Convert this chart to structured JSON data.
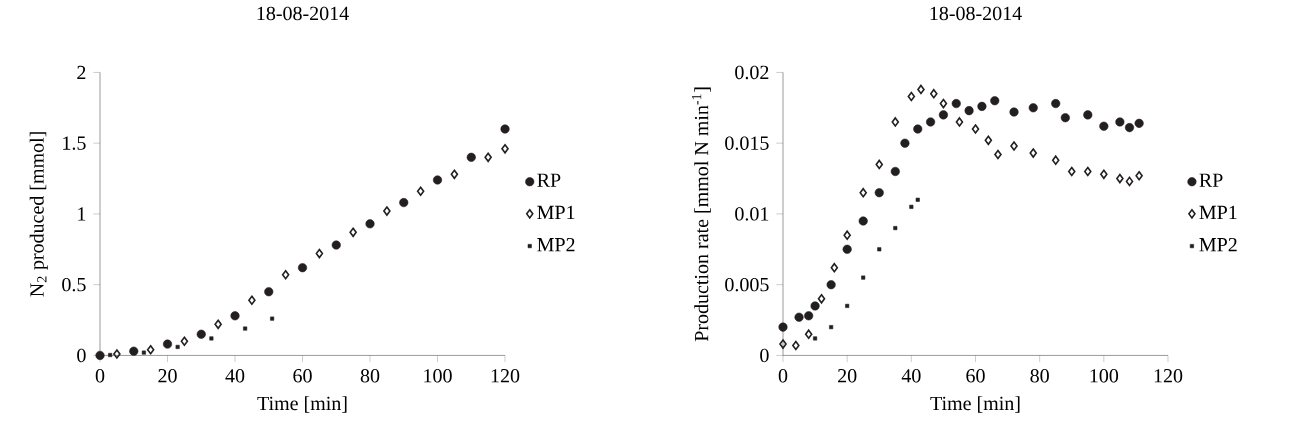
{
  "chart_data": [
    {
      "type": "scatter",
      "title": "18-08-2014",
      "xlabel": "Time [min]",
      "ylabel": "N$_{2}$ produced [mmol]",
      "xlim": [
        0,
        120
      ],
      "xticks": [
        0,
        20,
        40,
        60,
        80,
        100,
        120
      ],
      "ylim": [
        0,
        2
      ],
      "yticks": [
        0,
        0.5,
        1,
        1.5,
        2
      ],
      "grid": false,
      "legend": "right",
      "series": [
        {
          "name": "RP",
          "color": "#231f20",
          "marker": "circle",
          "x": [
            0,
            10,
            20,
            30,
            40,
            50,
            60,
            70,
            80,
            90,
            100,
            110,
            120
          ],
          "values": [
            0,
            0.03,
            0.08,
            0.15,
            0.28,
            0.45,
            0.62,
            0.78,
            0.93,
            1.08,
            1.24,
            1.4,
            1.6
          ]
        },
        {
          "name": "MP1",
          "color": "#231f20",
          "marker": "diamond",
          "x": [
            5,
            15,
            25,
            35,
            45,
            55,
            65,
            75,
            85,
            95,
            105,
            115,
            120
          ],
          "values": [
            0.01,
            0.04,
            0.1,
            0.22,
            0.39,
            0.57,
            0.72,
            0.87,
            1.02,
            1.16,
            1.28,
            1.4,
            1.46
          ]
        },
        {
          "name": "MP2",
          "color": "#231f20",
          "marker": "square",
          "x": [
            3,
            13,
            23,
            33,
            43,
            51
          ],
          "values": [
            0.003,
            0.02,
            0.06,
            0.12,
            0.19,
            0.26
          ]
        }
      ]
    },
    {
      "type": "scatter",
      "title": "18-08-2014",
      "xlabel": "Time [min]",
      "ylabel": "Production rate [mmol N min$^{-1}$]",
      "xlim": [
        0,
        120
      ],
      "xticks": [
        0,
        20,
        40,
        60,
        80,
        100,
        120
      ],
      "ylim": [
        0,
        0.02
      ],
      "yticks": [
        0,
        0.005,
        0.01,
        0.015,
        0.02
      ],
      "grid": false,
      "legend": "right",
      "series": [
        {
          "name": "RP",
          "color": "#231f20",
          "marker": "circle",
          "x": [
            0,
            5,
            8,
            10,
            15,
            20,
            25,
            30,
            35,
            38,
            42,
            46,
            50,
            54,
            58,
            62,
            66,
            72,
            78,
            85,
            88,
            95,
            100,
            105,
            108,
            111
          ],
          "values": [
            0.002,
            0.0027,
            0.0028,
            0.0035,
            0.005,
            0.0075,
            0.0095,
            0.0115,
            0.013,
            0.015,
            0.016,
            0.0165,
            0.017,
            0.0178,
            0.0173,
            0.0176,
            0.018,
            0.0172,
            0.0175,
            0.0178,
            0.0168,
            0.017,
            0.0162,
            0.0165,
            0.0161,
            0.0164
          ]
        },
        {
          "name": "MP1",
          "color": "#231f20",
          "marker": "diamond",
          "x": [
            0,
            4,
            8,
            12,
            16,
            20,
            25,
            30,
            35,
            40,
            43,
            47,
            50,
            55,
            60,
            64,
            67,
            72,
            78,
            85,
            90,
            95,
            100,
            105,
            108,
            111
          ],
          "values": [
            0.0008,
            0.0007,
            0.0015,
            0.004,
            0.0062,
            0.0085,
            0.0115,
            0.0135,
            0.0165,
            0.0183,
            0.0188,
            0.0185,
            0.0178,
            0.0165,
            0.016,
            0.0152,
            0.0142,
            0.0148,
            0.0143,
            0.0138,
            0.013,
            0.013,
            0.0128,
            0.0125,
            0.0123,
            0.0127
          ]
        },
        {
          "name": "MP2",
          "color": "#231f20",
          "marker": "square",
          "x": [
            10,
            15,
            20,
            25,
            30,
            35,
            40,
            42
          ],
          "values": [
            0.0012,
            0.002,
            0.0035,
            0.0055,
            0.0075,
            0.009,
            0.0105,
            0.011
          ]
        }
      ]
    }
  ]
}
